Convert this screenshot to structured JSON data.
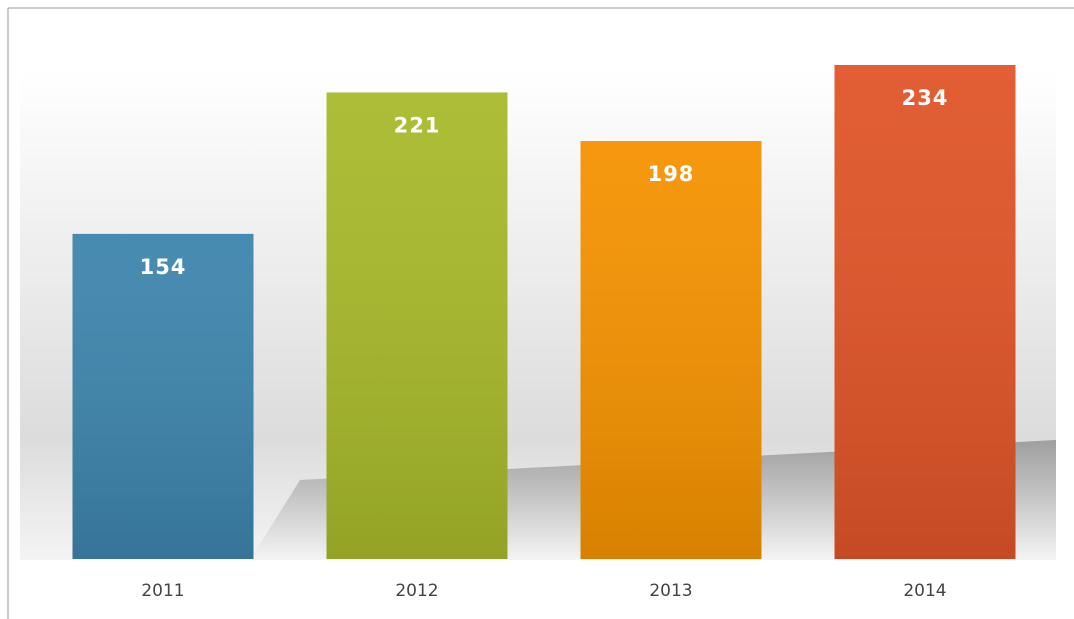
{
  "chart_data": {
    "type": "bar",
    "categories": [
      "2011",
      "2012",
      "2013",
      "2014"
    ],
    "values": [
      154,
      221,
      198,
      234
    ],
    "colors": [
      "#3d84ad",
      "#a8b92a",
      "#f59200",
      "#e05427"
    ]
  }
}
